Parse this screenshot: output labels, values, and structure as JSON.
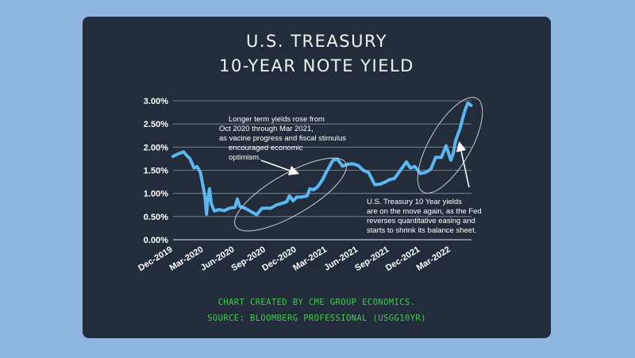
{
  "title_line1": "U.S. TREASURY",
  "title_line2": "10-YEAR NOTE YIELD",
  "credit_line1": "CHART CREATED BY CME GROUP ECONOMICS.",
  "credit_line2": "SOURCE: BLOOMBERG PROFESSIONAL (USGG10YR)",
  "colors": {
    "background": "#8fb6e0",
    "card": "#232c3b",
    "line": "#5ab8f0",
    "credit": "#43c94f",
    "text": "#ffffff",
    "grid": "#8a8f98"
  },
  "chart_data": {
    "type": "line",
    "title": "U.S. TREASURY 10-YEAR NOTE YIELD",
    "xlabel": "",
    "ylabel": "",
    "ylim": [
      0,
      3.0
    ],
    "yticks": [
      "0.00%",
      "0.50%",
      "1.00%",
      "1.50%",
      "2.00%",
      "2.50%",
      "3.00%"
    ],
    "xticks": [
      "Dec-2019",
      "Mar-2020",
      "Jun-2020",
      "Sep-2020",
      "Dec-2020",
      "Mar-2021",
      "Jun-2021",
      "Sep-2021",
      "Dec-2021",
      "Mar-2022"
    ],
    "grid": true,
    "series": [
      {
        "x": [
          "2019-12-01",
          "2019-12-15",
          "2020-01-01",
          "2020-01-10",
          "2020-01-20",
          "2020-02-01",
          "2020-02-10",
          "2020-02-20",
          "2020-02-28",
          "2020-03-04",
          "2020-03-09",
          "2020-03-12",
          "2020-03-18",
          "2020-03-23",
          "2020-04-01",
          "2020-04-15",
          "2020-05-01",
          "2020-05-15",
          "2020-06-01",
          "2020-06-08",
          "2020-06-15",
          "2020-07-01",
          "2020-07-15",
          "2020-08-04",
          "2020-08-20",
          "2020-09-01",
          "2020-09-15",
          "2020-10-01",
          "2020-10-15",
          "2020-11-01",
          "2020-11-09",
          "2020-11-20",
          "2020-12-01",
          "2020-12-15",
          "2021-01-01",
          "2021-01-08",
          "2021-01-20",
          "2021-02-01",
          "2021-02-15",
          "2021-02-25",
          "2021-03-05",
          "2021-03-18",
          "2021-03-31",
          "2021-04-15",
          "2021-05-01",
          "2021-05-15",
          "2021-06-01",
          "2021-06-15",
          "2021-07-01",
          "2021-07-19",
          "2021-08-04",
          "2021-08-20",
          "2021-09-01",
          "2021-09-15",
          "2021-10-01",
          "2021-10-21",
          "2021-11-01",
          "2021-11-15",
          "2021-12-01",
          "2021-12-15",
          "2022-01-01",
          "2022-01-15",
          "2022-02-01",
          "2022-02-15",
          "2022-03-01",
          "2022-03-08",
          "2022-03-15",
          "2022-03-28",
          "2022-04-05",
          "2022-04-12",
          "2022-04-20",
          "2022-04-30"
        ],
        "values": [
          1.8,
          1.85,
          1.9,
          1.82,
          1.75,
          1.55,
          1.58,
          1.45,
          1.15,
          0.95,
          0.55,
          0.82,
          1.1,
          0.78,
          0.62,
          0.65,
          0.63,
          0.68,
          0.7,
          0.88,
          0.72,
          0.68,
          0.62,
          0.54,
          0.68,
          0.68,
          0.68,
          0.75,
          0.78,
          0.82,
          0.95,
          0.84,
          0.92,
          0.92,
          0.95,
          1.1,
          1.08,
          1.15,
          1.3,
          1.45,
          1.55,
          1.72,
          1.74,
          1.59,
          1.63,
          1.64,
          1.6,
          1.5,
          1.45,
          1.19,
          1.2,
          1.25,
          1.3,
          1.32,
          1.48,
          1.68,
          1.55,
          1.58,
          1.43,
          1.45,
          1.52,
          1.78,
          1.78,
          2.03,
          1.72,
          1.86,
          2.14,
          2.4,
          2.62,
          2.8,
          2.95,
          2.9
        ]
      }
    ],
    "annotations": [
      {
        "text": [
          "Longer term yields rose from",
          "Oct 2020 through Mar 2021,",
          "as vacine progress and fiscal stimulus",
          "encouraged economic",
          "optimism."
        ]
      },
      {
        "text": [
          "U.S. Treasury 10 Year yields",
          "are on the move again, as the Fed",
          "reverses quantitative easing and",
          "starts to shrink its balance sheet."
        ]
      }
    ]
  }
}
